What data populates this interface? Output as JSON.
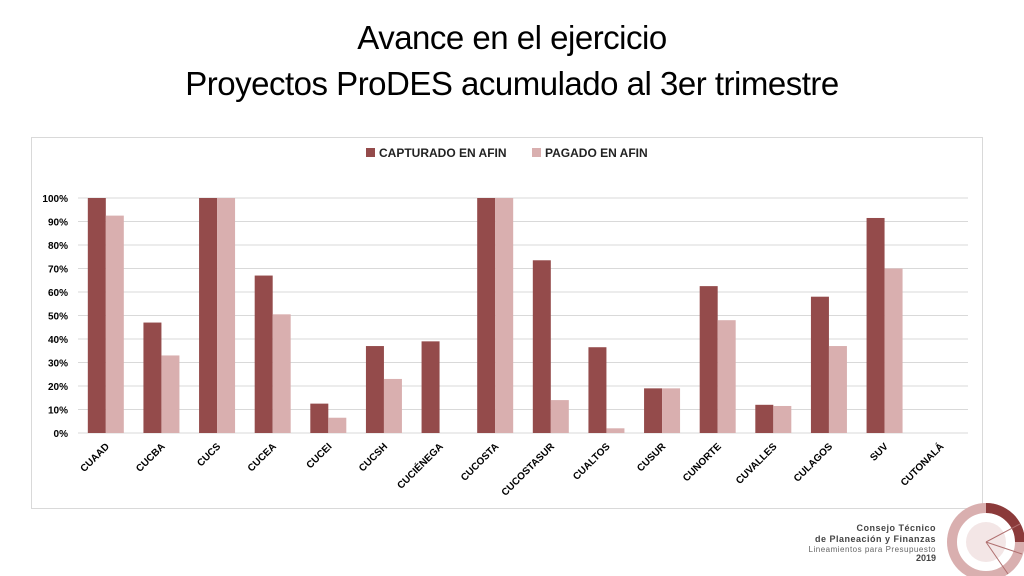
{
  "slide": {
    "title_line1": "Avance en el ejercicio",
    "title_line2": "Proyectos ProDES acumulado al 3er trimestre"
  },
  "footer": {
    "line1": "Consejo Técnico",
    "line2": "de Planeación y Finanzas",
    "line3": "Lineamientos para Presupuesto",
    "line4": "2019"
  },
  "colors": {
    "series_captured": "#944B4B",
    "series_paid": "#D9AFAF",
    "grid": "#d9d9d9",
    "logo_accent": "#8B3A3A"
  },
  "chart_data": {
    "type": "bar",
    "title": "",
    "xlabel": "",
    "ylabel": "",
    "ylim": [
      0,
      100
    ],
    "yticks": [
      0,
      10,
      20,
      30,
      40,
      50,
      60,
      70,
      80,
      90,
      100
    ],
    "y_tick_suffix": "%",
    "grid": true,
    "legend_position": "top",
    "categories": [
      "CUAAD",
      "CUCBA",
      "CUCS",
      "CUCEA",
      "CUCEI",
      "CUCSH",
      "CUCIÉNEGA",
      "CUCOSTA",
      "CUCOSTASUR",
      "CUALTOS",
      "CUSUR",
      "CUNORTE",
      "CUVALLES",
      "CULAGOS",
      "SUV",
      "CUTONALÁ"
    ],
    "series": [
      {
        "name": "CAPTURADO EN AFIN",
        "values": [
          100,
          47,
          100,
          67,
          12.5,
          37,
          39,
          100,
          73.5,
          36.5,
          19,
          62.5,
          12,
          58,
          91.5,
          0
        ]
      },
      {
        "name": "PAGADO EN AFIN",
        "values": [
          92.5,
          33,
          100,
          50.5,
          6.5,
          23,
          0,
          100,
          14,
          2,
          19,
          48,
          11.5,
          37,
          70,
          0
        ]
      }
    ]
  }
}
